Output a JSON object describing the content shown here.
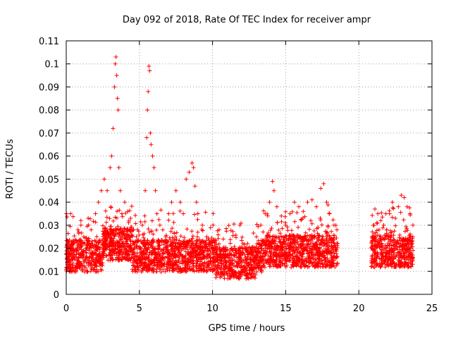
{
  "chart_data": {
    "type": "scatter",
    "title": "Day 092 of 2018, Rate Of TEC Index for receiver ampr",
    "xlabel": "GPS time / hours",
    "ylabel": "ROTI / TECUs",
    "xlim": [
      0,
      25
    ],
    "ylim": [
      0,
      0.11
    ],
    "grid": true,
    "x_ticks": [
      0,
      5,
      10,
      15,
      20,
      25
    ],
    "x_tick_labels": [
      "0",
      "5",
      "10",
      "15",
      "20",
      "25"
    ],
    "y_ticks": [
      0,
      0.01,
      0.02,
      0.03,
      0.04,
      0.05,
      0.06,
      0.07,
      0.08,
      0.09,
      0.1,
      0.11
    ],
    "y_tick_labels": [
      "0",
      "0.01",
      "0.02",
      "0.03",
      "0.04",
      "0.05",
      "0.06",
      "0.07",
      "0.08",
      "0.09",
      "0.1",
      "0.11"
    ],
    "marker": "plus",
    "color": "#ff0000",
    "series": [
      {
        "x": [
          0.1,
          0.3,
          0.5,
          0.8,
          1.0,
          1.2,
          1.5,
          1.7,
          2.0,
          2.2,
          2.4,
          2.6,
          2.8,
          3.0,
          3.1,
          3.2,
          3.3,
          3.35,
          3.4,
          3.45,
          3.5,
          3.55,
          3.6,
          3.7,
          3.8,
          4.0,
          4.2,
          4.4,
          4.6,
          4.8,
          5.0,
          5.2,
          5.4,
          5.5,
          5.55,
          5.6,
          5.65,
          5.7,
          5.75,
          5.8,
          5.9,
          6.0,
          6.1,
          6.2,
          6.4,
          6.6,
          6.8,
          7.0,
          7.2,
          7.5,
          7.8,
          8.0,
          8.2,
          8.4,
          8.6,
          8.7,
          8.8,
          8.9,
          9.0,
          9.3,
          9.6,
          10.0,
          10.3,
          10.6,
          10.9,
          11.2,
          11.5,
          11.8,
          12.1,
          12.4,
          12.7,
          13.0,
          13.3,
          13.6,
          13.9,
          14.1,
          14.2,
          14.4,
          14.7,
          15.0,
          15.3,
          15.6,
          15.9,
          16.2,
          16.5,
          16.8,
          17.1,
          17.4,
          17.6,
          17.8,
          18.0,
          18.3,
          18.5,
          20.9,
          21.1,
          21.3,
          21.5,
          21.7,
          21.9,
          22.1,
          22.3,
          22.5,
          22.7,
          22.9,
          23.1,
          23.3,
          23.5,
          23.7
        ],
        "y": [
          0.018,
          0.035,
          0.022,
          0.028,
          0.03,
          0.025,
          0.033,
          0.028,
          0.035,
          0.04,
          0.045,
          0.05,
          0.045,
          0.055,
          0.06,
          0.072,
          0.09,
          0.1,
          0.103,
          0.095,
          0.085,
          0.08,
          0.055,
          0.045,
          0.035,
          0.04,
          0.036,
          0.033,
          0.028,
          0.025,
          0.02,
          0.03,
          0.045,
          0.068,
          0.08,
          0.088,
          0.099,
          0.097,
          0.07,
          0.065,
          0.06,
          0.055,
          0.045,
          0.035,
          0.03,
          0.028,
          0.025,
          0.035,
          0.04,
          0.045,
          0.04,
          0.035,
          0.05,
          0.053,
          0.057,
          0.055,
          0.047,
          0.04,
          0.035,
          0.03,
          0.025,
          0.02,
          0.015,
          0.016,
          0.012,
          0.014,
          0.02,
          0.015,
          0.018,
          0.022,
          0.02,
          0.025,
          0.03,
          0.035,
          0.04,
          0.049,
          0.045,
          0.038,
          0.034,
          0.03,
          0.035,
          0.04,
          0.038,
          0.036,
          0.04,
          0.041,
          0.038,
          0.046,
          0.048,
          0.04,
          0.035,
          0.03,
          0.028,
          0.025,
          0.037,
          0.035,
          0.032,
          0.03,
          0.028,
          0.035,
          0.04,
          0.033,
          0.038,
          0.043,
          0.042,
          0.038,
          0.035,
          0.03
        ]
      }
    ]
  }
}
